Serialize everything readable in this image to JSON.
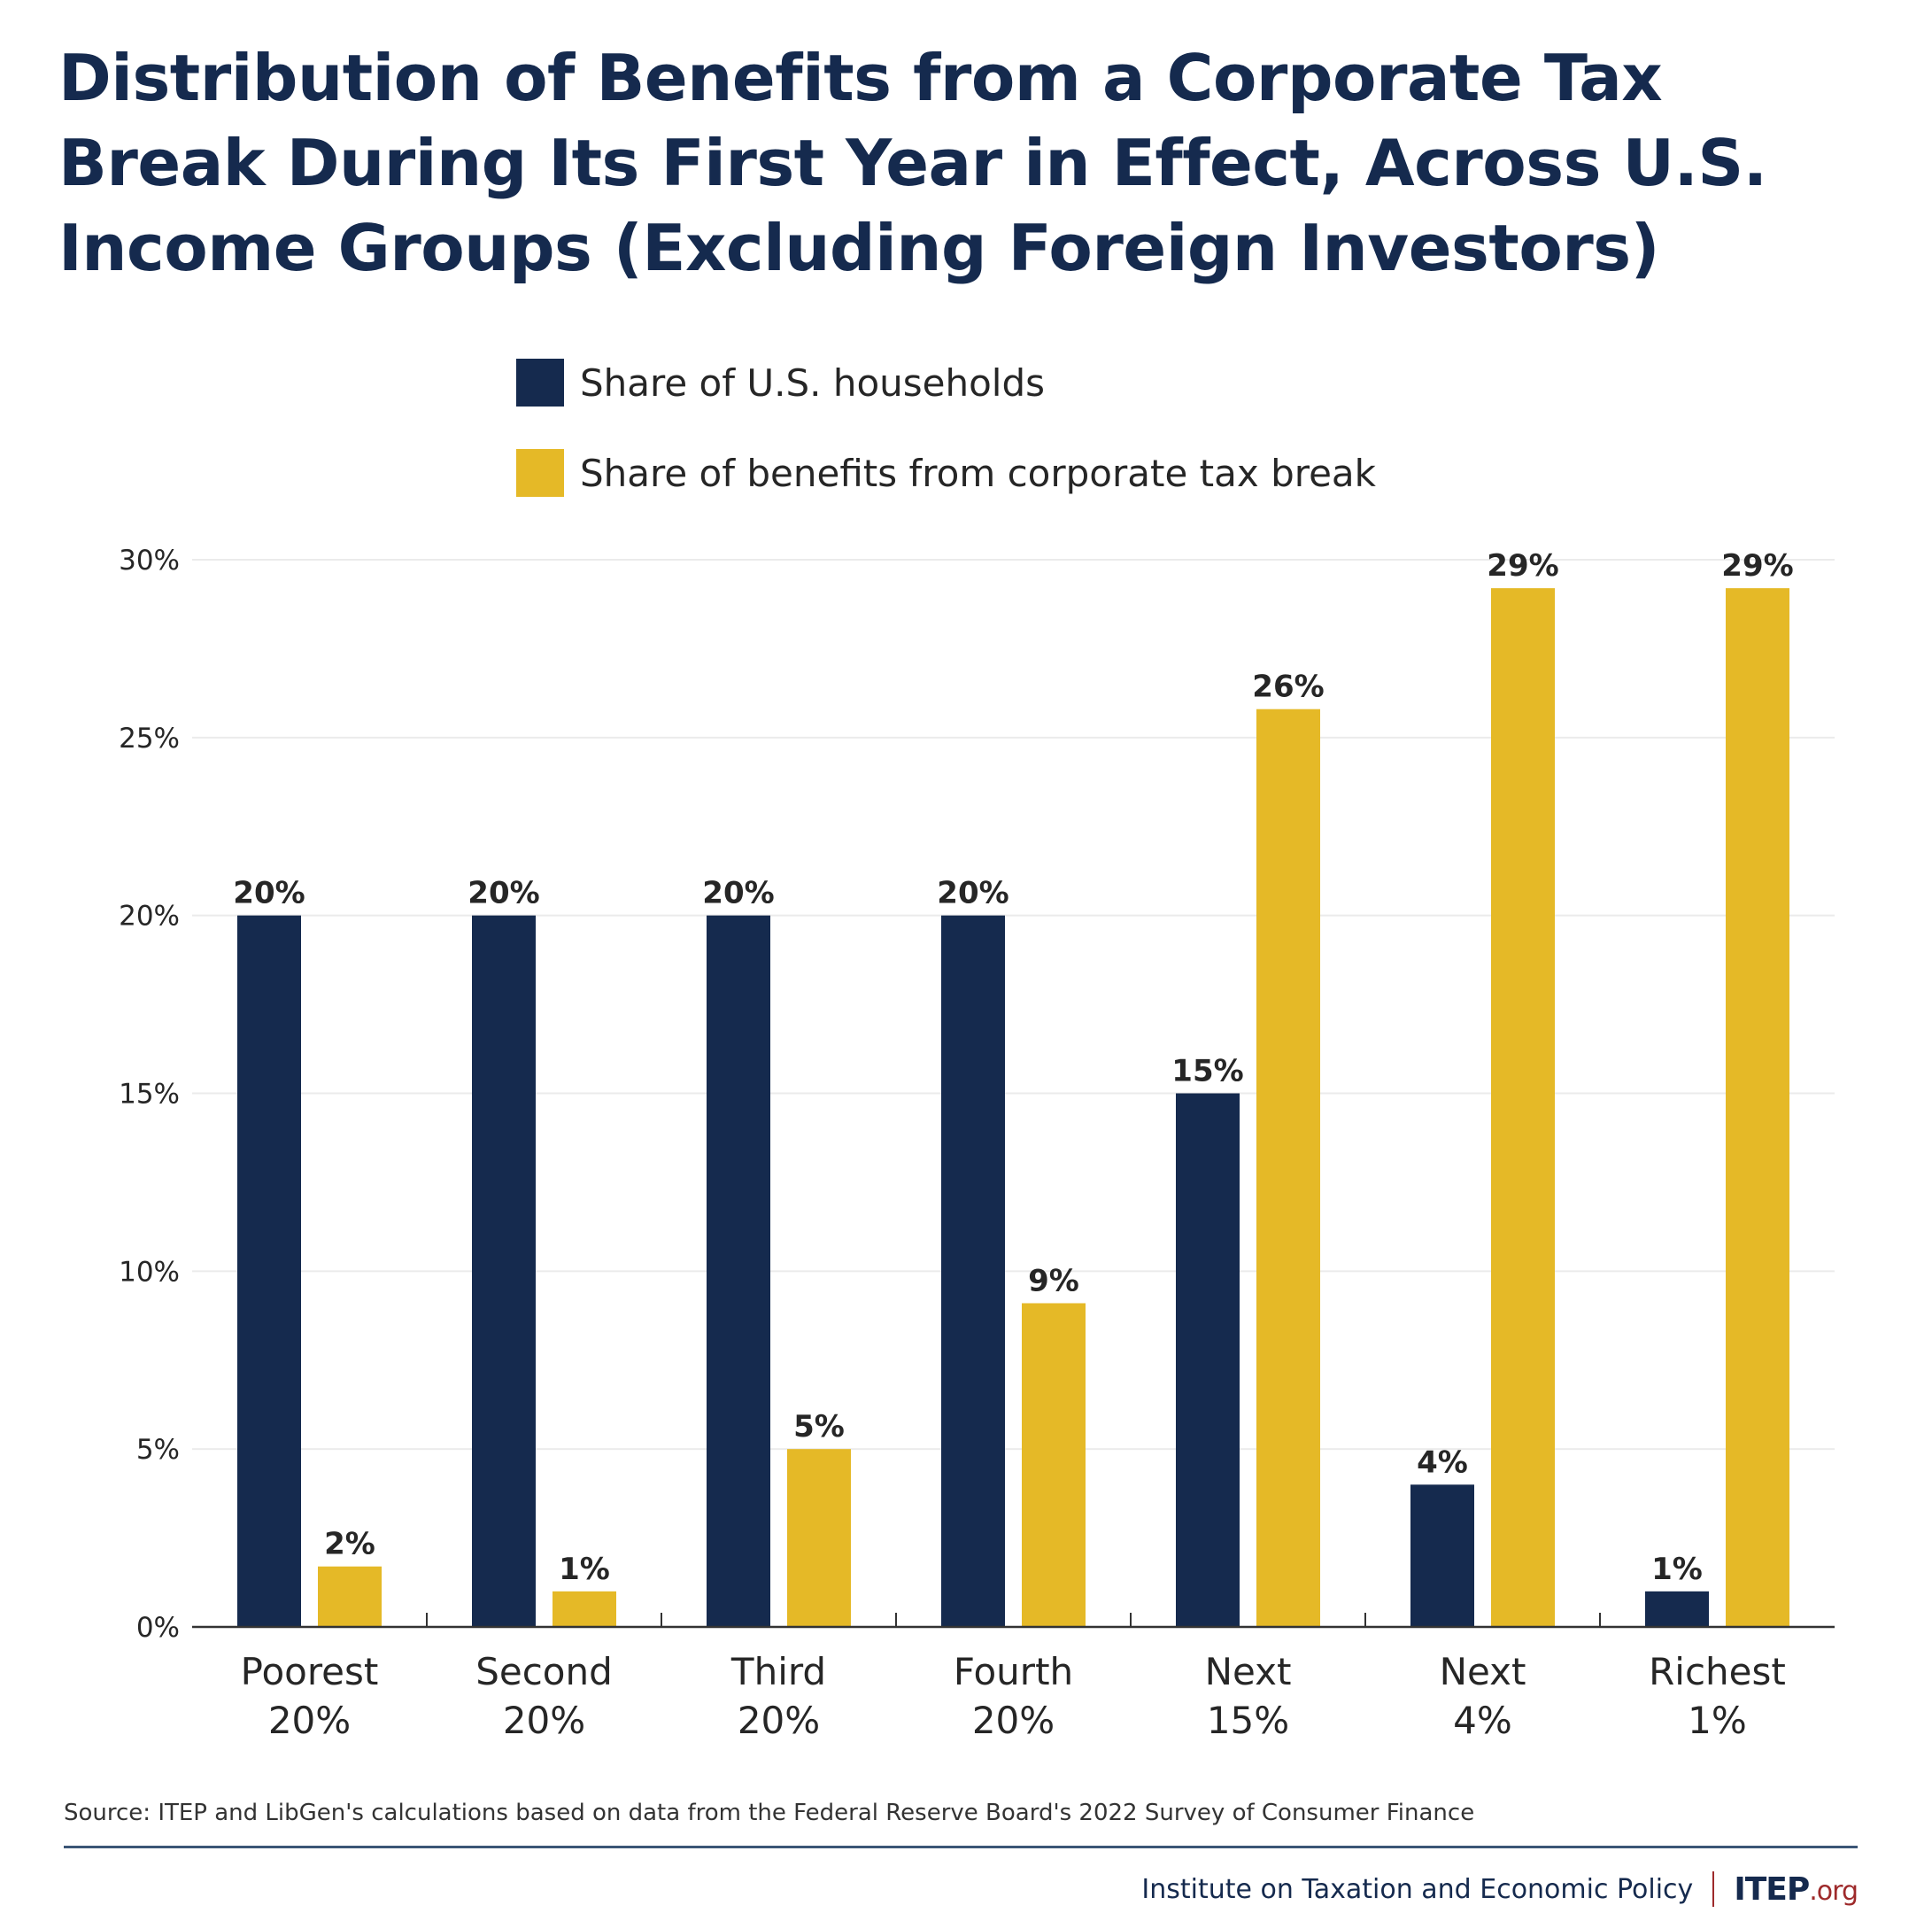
{
  "title_lines": [
    "Distribution of Benefits from a Corporate Tax",
    "Break During Its First Year in Effect, Across U.S.",
    "Income Groups (Excluding Foreign Investors)"
  ],
  "colors": {
    "households": "#152a4e",
    "benefits": "#e5b927",
    "text": "#262626",
    "grid": "#ebebeb",
    "axis": "#333333",
    "brand_navy": "#152a4e",
    "brand_red": "#9e2a2b"
  },
  "legend": [
    {
      "label": "Share of U.S. households",
      "series": "households"
    },
    {
      "label": "Share of benefits from corporate tax break",
      "series": "benefits"
    }
  ],
  "source": "Source: ITEP and LibGen's calculations based on data from the Federal Reserve Board's 2022 Survey of Consumer Finance",
  "footer": {
    "org_name": "Institute on Taxation and Economic Policy",
    "logo_main": "ITEP",
    "logo_suffix": ".org"
  },
  "chart_data": {
    "type": "bar",
    "title": "Distribution of Benefits from a Corporate Tax Break During Its First Year in Effect, Across U.S. Income Groups (Excluding Foreign Investors)",
    "xlabel": "",
    "ylabel": "",
    "categories": [
      [
        "Poorest",
        "20%"
      ],
      [
        "Second",
        "20%"
      ],
      [
        "Third",
        "20%"
      ],
      [
        "Fourth",
        "20%"
      ],
      [
        "Next",
        "15%"
      ],
      [
        "Next",
        "4%"
      ],
      [
        "Richest",
        "1%"
      ]
    ],
    "series": [
      {
        "name": "Share of U.S. households",
        "key": "households",
        "values": [
          20,
          20,
          20,
          20,
          15,
          4,
          1
        ],
        "labels": [
          "20%",
          "20%",
          "20%",
          "20%",
          "15%",
          "4%",
          "1%"
        ]
      },
      {
        "name": "Share of benefits from corporate tax break",
        "key": "benefits",
        "values": [
          1.7,
          1.0,
          5.0,
          9.1,
          25.8,
          29.2,
          29.2
        ],
        "labels": [
          "2%",
          "1%",
          "5%",
          "9%",
          "26%",
          "29%",
          "29%"
        ]
      }
    ],
    "ylim": [
      0,
      30
    ],
    "yticks": [
      0,
      5,
      10,
      15,
      20,
      25,
      30
    ],
    "ytick_labels": [
      "0%",
      "5%",
      "10%",
      "15%",
      "20%",
      "25%",
      "30%"
    ],
    "grid": true,
    "legend_position": "top-center"
  }
}
